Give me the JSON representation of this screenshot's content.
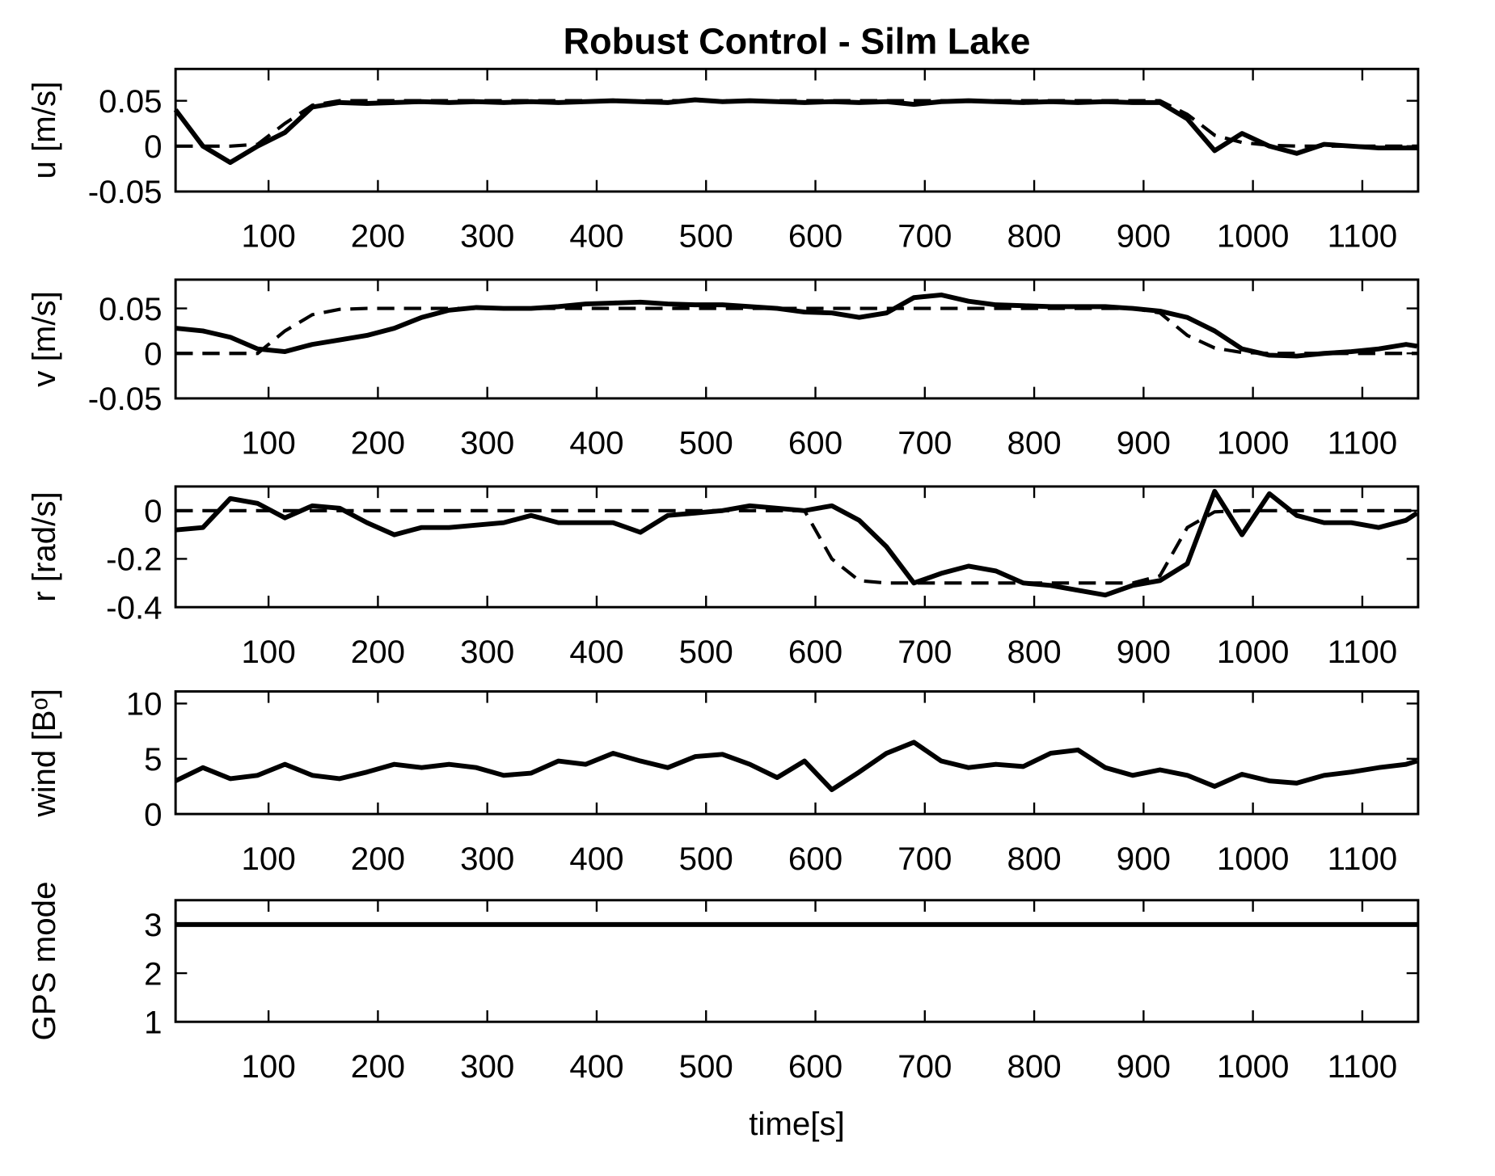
{
  "chart_data": [
    {
      "type": "line",
      "title": "Robust Control - Silm Lake",
      "ylabel": "u [m/s]",
      "x": [
        15,
        40,
        65,
        90,
        115,
        140,
        165,
        190,
        215,
        240,
        265,
        290,
        315,
        340,
        365,
        390,
        415,
        440,
        465,
        490,
        515,
        540,
        565,
        590,
        615,
        640,
        665,
        690,
        715,
        740,
        765,
        790,
        815,
        840,
        865,
        890,
        915,
        940,
        965,
        990,
        1015,
        1040,
        1065,
        1090,
        1115,
        1140,
        1150
      ],
      "xlim": [
        15,
        1151
      ],
      "xticks": [
        100,
        200,
        300,
        400,
        500,
        600,
        700,
        800,
        900,
        1000,
        1100
      ],
      "ylim": [
        -0.05,
        0.085
      ],
      "yticks": [
        -0.05,
        0,
        0.05
      ],
      "series": [
        {
          "color": "#000000",
          "style": "dashed",
          "values": [
            0,
            0,
            0,
            0.002,
            0.025,
            0.045,
            0.05,
            0.05,
            0.05,
            0.05,
            0.05,
            0.05,
            0.05,
            0.05,
            0.05,
            0.05,
            0.05,
            0.05,
            0.05,
            0.05,
            0.05,
            0.05,
            0.05,
            0.05,
            0.05,
            0.05,
            0.05,
            0.05,
            0.05,
            0.05,
            0.05,
            0.05,
            0.05,
            0.05,
            0.05,
            0.05,
            0.05,
            0.035,
            0.012,
            0.004,
            0.001,
            0,
            0,
            0,
            0,
            0,
            0
          ]
        },
        {
          "color": "#000000",
          "style": "solid",
          "values": [
            0.04,
            0,
            -0.018,
            0,
            0.015,
            0.043,
            0.048,
            0.047,
            0.048,
            0.049,
            0.048,
            0.049,
            0.048,
            0.049,
            0.048,
            0.049,
            0.05,
            0.049,
            0.048,
            0.051,
            0.049,
            0.05,
            0.049,
            0.048,
            0.049,
            0.048,
            0.049,
            0.046,
            0.049,
            0.05,
            0.049,
            0.048,
            0.049,
            0.048,
            0.049,
            0.048,
            0.048,
            0.03,
            -0.005,
            0.014,
            0,
            -0.008,
            0.002,
            0,
            -0.002,
            -0.002,
            -0.002
          ]
        }
      ]
    },
    {
      "type": "line",
      "ylabel": "v [m/s]",
      "x": [
        15,
        40,
        65,
        90,
        115,
        140,
        165,
        190,
        215,
        240,
        265,
        290,
        315,
        340,
        365,
        390,
        415,
        440,
        465,
        490,
        515,
        540,
        565,
        590,
        615,
        640,
        665,
        690,
        715,
        740,
        765,
        790,
        815,
        840,
        865,
        890,
        915,
        940,
        965,
        990,
        1015,
        1040,
        1065,
        1090,
        1115,
        1140,
        1150
      ],
      "xlim": [
        15,
        1151
      ],
      "xticks": [
        100,
        200,
        300,
        400,
        500,
        600,
        700,
        800,
        900,
        1000,
        1100
      ],
      "ylim": [
        -0.05,
        0.082
      ],
      "yticks": [
        -0.05,
        0,
        0.05
      ],
      "series": [
        {
          "color": "#000000",
          "style": "dashed",
          "values": [
            0,
            0,
            0,
            0,
            0.025,
            0.043,
            0.049,
            0.05,
            0.05,
            0.05,
            0.05,
            0.05,
            0.05,
            0.05,
            0.05,
            0.05,
            0.05,
            0.05,
            0.05,
            0.05,
            0.05,
            0.05,
            0.05,
            0.05,
            0.05,
            0.05,
            0.05,
            0.05,
            0.05,
            0.05,
            0.05,
            0.05,
            0.05,
            0.05,
            0.05,
            0.05,
            0.045,
            0.02,
            0.006,
            0.001,
            0,
            0,
            0,
            0,
            0,
            0,
            0
          ]
        },
        {
          "color": "#000000",
          "style": "solid",
          "values": [
            0.028,
            0.025,
            0.018,
            0.005,
            0.002,
            0.01,
            0.015,
            0.02,
            0.028,
            0.04,
            0.048,
            0.051,
            0.05,
            0.05,
            0.052,
            0.055,
            0.056,
            0.057,
            0.055,
            0.054,
            0.054,
            0.052,
            0.05,
            0.046,
            0.045,
            0.04,
            0.045,
            0.062,
            0.065,
            0.058,
            0.054,
            0.053,
            0.052,
            0.052,
            0.052,
            0.05,
            0.047,
            0.04,
            0.025,
            0.005,
            -0.002,
            -0.003,
            0,
            0.002,
            0.005,
            0.01,
            0.008
          ]
        }
      ]
    },
    {
      "type": "line",
      "ylabel": "r [rad/s]",
      "x": [
        15,
        40,
        65,
        90,
        115,
        140,
        165,
        190,
        215,
        240,
        265,
        290,
        315,
        340,
        365,
        390,
        415,
        440,
        465,
        490,
        515,
        540,
        565,
        590,
        615,
        640,
        665,
        690,
        715,
        740,
        765,
        790,
        815,
        840,
        865,
        890,
        915,
        940,
        965,
        990,
        1015,
        1040,
        1065,
        1090,
        1115,
        1140,
        1150
      ],
      "xlim": [
        15,
        1151
      ],
      "xticks": [
        100,
        200,
        300,
        400,
        500,
        600,
        700,
        800,
        900,
        1000,
        1100
      ],
      "ylim": [
        -0.4,
        0.1
      ],
      "yticks": [
        -0.4,
        -0.2,
        0
      ],
      "series": [
        {
          "color": "#000000",
          "style": "dashed",
          "values": [
            0,
            0,
            0,
            0,
            0,
            0,
            0,
            0,
            0,
            0,
            0,
            0,
            0,
            0,
            0,
            0,
            0,
            0,
            0,
            0,
            0,
            0,
            0,
            0,
            -0.2,
            -0.29,
            -0.3,
            -0.3,
            -0.3,
            -0.3,
            -0.3,
            -0.3,
            -0.3,
            -0.3,
            -0.3,
            -0.3,
            -0.27,
            -0.07,
            -0.005,
            0,
            0,
            0,
            0,
            0,
            0,
            0,
            0
          ]
        },
        {
          "color": "#000000",
          "style": "solid",
          "values": [
            -0.08,
            -0.07,
            0.05,
            0.03,
            -0.03,
            0.02,
            0.01,
            -0.05,
            -0.1,
            -0.07,
            -0.07,
            -0.06,
            -0.05,
            -0.02,
            -0.05,
            -0.05,
            -0.05,
            -0.09,
            -0.02,
            -0.01,
            0,
            0.02,
            0.01,
            0,
            0.02,
            -0.04,
            -0.15,
            -0.3,
            -0.26,
            -0.23,
            -0.25,
            -0.3,
            -0.31,
            -0.33,
            -0.35,
            -0.31,
            -0.29,
            -0.22,
            0.08,
            -0.1,
            0.07,
            -0.02,
            -0.05,
            -0.05,
            -0.07,
            -0.04,
            -0.01
          ]
        }
      ]
    },
    {
      "type": "line",
      "ylabel": "wind [Bᵒ]",
      "x": [
        15,
        40,
        65,
        90,
        115,
        140,
        165,
        190,
        215,
        240,
        265,
        290,
        315,
        340,
        365,
        390,
        415,
        440,
        465,
        490,
        515,
        540,
        565,
        590,
        615,
        640,
        665,
        690,
        715,
        740,
        765,
        790,
        815,
        840,
        865,
        890,
        915,
        940,
        965,
        990,
        1015,
        1040,
        1065,
        1090,
        1115,
        1140,
        1150
      ],
      "xlim": [
        15,
        1151
      ],
      "xticks": [
        100,
        200,
        300,
        400,
        500,
        600,
        700,
        800,
        900,
        1000,
        1100
      ],
      "ylim": [
        0,
        11.1
      ],
      "yticks": [
        0,
        5,
        10
      ],
      "series": [
        {
          "color": "#000000",
          "style": "solid",
          "values": [
            3,
            4.2,
            3.2,
            3.5,
            4.5,
            3.5,
            3.2,
            3.8,
            4.5,
            4.2,
            4.5,
            4.2,
            3.5,
            3.7,
            4.8,
            4.5,
            5.5,
            4.8,
            4.2,
            5.2,
            5.4,
            4.5,
            3.3,
            4.8,
            2.2,
            3.8,
            5.5,
            6.5,
            4.8,
            4.2,
            4.5,
            4.3,
            5.5,
            5.8,
            4.2,
            3.5,
            4,
            3.5,
            2.5,
            3.6,
            3,
            2.8,
            3.5,
            3.8,
            4.2,
            4.5,
            4.8
          ]
        }
      ]
    },
    {
      "type": "line",
      "ylabel": "GPS mode",
      "xlabel": "time[s]",
      "x": [
        15,
        1151
      ],
      "xlim": [
        15,
        1151
      ],
      "xticks": [
        100,
        200,
        300,
        400,
        500,
        600,
        700,
        800,
        900,
        1000,
        1100
      ],
      "ylim": [
        1,
        3.5
      ],
      "yticks": [
        1,
        2,
        3
      ],
      "series": [
        {
          "color": "#000000",
          "style": "solid",
          "values": [
            3,
            3
          ]
        }
      ]
    }
  ]
}
